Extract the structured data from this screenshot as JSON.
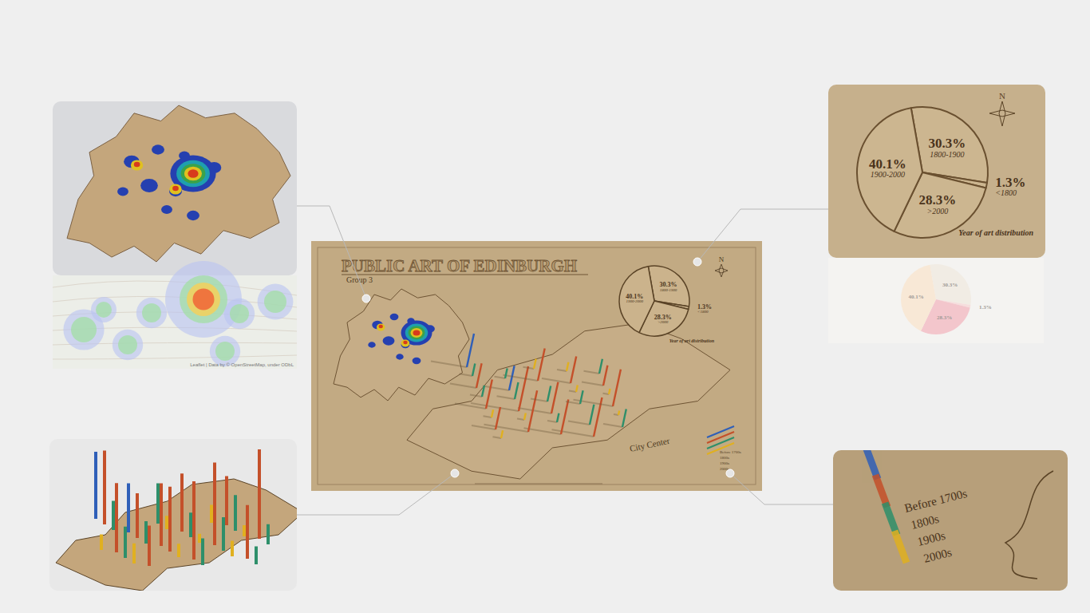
{
  "title": "PUBLIC ART OF EDINBURGH",
  "subtitle": "Group 3",
  "compass": "N",
  "map_label": "City Center",
  "map_attribution": "Leaflet | Data by © OpenStreetMap, under ODbL",
  "chart_data": {
    "type": "pie",
    "title": "Year of art distribution",
    "categories": [
      "1800-1900",
      "<1800",
      ">2000",
      "1900-2000"
    ],
    "values": [
      30.3,
      1.3,
      28.3,
      40.1
    ],
    "value_labels": [
      "30.3%",
      "1.3%",
      "28.3%",
      "40.1%"
    ],
    "colors": [
      "#f1ece4",
      "#f6dedd",
      "#f3c6cc",
      "#f8e8d6"
    ],
    "data_labels": true
  },
  "legend": {
    "series": [
      {
        "name": "Before 1700s",
        "color": "#2f5fb8",
        "values": [
          30,
          22
        ]
      },
      {
        "name": "1800s",
        "color": "#c4502a",
        "values": [
          28,
          35,
          22,
          40,
          31,
          18,
          26,
          37,
          24,
          33,
          20,
          29
        ]
      },
      {
        "name": "1900s",
        "color": "#2e8f6a",
        "values": [
          12,
          16,
          9,
          14,
          18,
          11,
          15,
          8,
          13,
          10
        ]
      },
      {
        "name": "2000s",
        "color": "#e0b020",
        "values": [
          6,
          8,
          5,
          7,
          9,
          6,
          4,
          7
        ]
      }
    ]
  }
}
